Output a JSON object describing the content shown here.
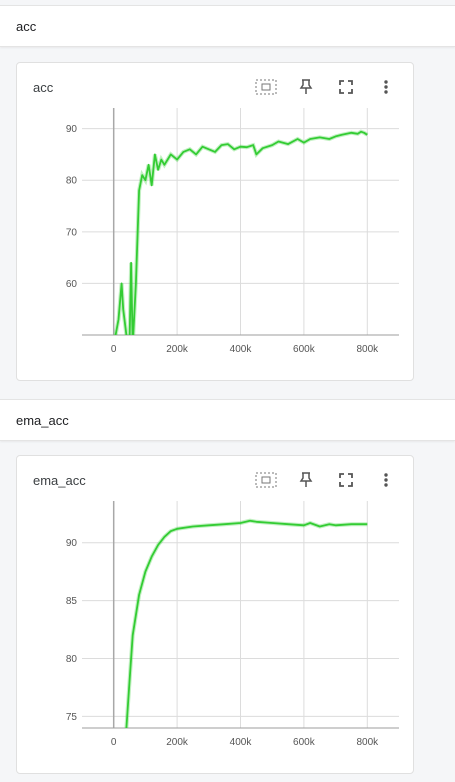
{
  "sections": [
    {
      "title": "acc"
    },
    {
      "title": "ema_acc"
    }
  ],
  "cards": [
    {
      "title": "acc",
      "tools": [
        "fit-domain-icon",
        "pin-icon",
        "fullscreen-icon",
        "more-vert-icon"
      ]
    },
    {
      "title": "ema_acc",
      "tools": [
        "fit-domain-icon",
        "pin-icon",
        "fullscreen-icon",
        "more-vert-icon"
      ]
    }
  ],
  "chart_data": [
    {
      "type": "line",
      "title": "acc",
      "xlabel": "",
      "ylabel": "",
      "xlim": [
        -100000,
        900000
      ],
      "ylim": [
        50,
        94
      ],
      "x_ticks": [
        0,
        200000,
        400000,
        600000,
        800000
      ],
      "x_tick_labels": [
        "0",
        "200k",
        "400k",
        "600k",
        "800k"
      ],
      "y_ticks": [
        60,
        70,
        80,
        90
      ],
      "y_tick_labels": [
        "60",
        "70",
        "80",
        "90"
      ],
      "grid": true,
      "color": "#33cc33",
      "series": [
        {
          "x": [
            0,
            15000,
            25000,
            30000,
            40000,
            50000,
            55000,
            60000,
            70000,
            80000,
            90000,
            100000,
            110000,
            120000,
            130000,
            140000,
            150000,
            160000,
            170000,
            180000,
            200000,
            220000,
            240000,
            260000,
            280000,
            300000,
            320000,
            340000,
            360000,
            380000,
            400000,
            420000,
            440000,
            450000,
            470000,
            500000,
            520000,
            550000,
            580000,
            600000,
            620000,
            650000,
            680000,
            700000,
            720000,
            750000,
            770000,
            780000,
            790000,
            800000
          ],
          "y": [
            48,
            53,
            60,
            55,
            50,
            48,
            64,
            48,
            60,
            78,
            81,
            80,
            83,
            79,
            85,
            82,
            84,
            83,
            84,
            85,
            84,
            85.5,
            86,
            85,
            86.5,
            86,
            85.5,
            86.8,
            87,
            86,
            86.5,
            86.4,
            86.8,
            85,
            86.2,
            86.8,
            87.5,
            87,
            88,
            87.3,
            88,
            88.3,
            88,
            88.5,
            88.8,
            89.2,
            89,
            89.4,
            89.2,
            88.8
          ]
        }
      ]
    },
    {
      "type": "line",
      "title": "ema_acc",
      "xlabel": "",
      "ylabel": "",
      "xlim": [
        -100000,
        900000
      ],
      "ylim": [
        74,
        93.6
      ],
      "x_ticks": [
        0,
        200000,
        400000,
        600000,
        800000
      ],
      "x_tick_labels": [
        "0",
        "200k",
        "400k",
        "600k",
        "800k"
      ],
      "y_ticks": [
        75,
        80,
        85,
        90
      ],
      "y_tick_labels": [
        "75",
        "80",
        "85",
        "90"
      ],
      "grid": true,
      "color": "#33cc33",
      "series": [
        {
          "x": [
            40000,
            50000,
            60000,
            80000,
            100000,
            120000,
            140000,
            160000,
            180000,
            200000,
            250000,
            300000,
            350000,
            400000,
            430000,
            450000,
            500000,
            550000,
            600000,
            620000,
            650000,
            680000,
            700000,
            750000,
            800000
          ],
          "y": [
            74,
            78,
            82,
            85.5,
            87.5,
            88.8,
            89.8,
            90.5,
            91,
            91.2,
            91.4,
            91.5,
            91.6,
            91.7,
            91.9,
            91.8,
            91.7,
            91.6,
            91.5,
            91.7,
            91.4,
            91.6,
            91.5,
            91.6,
            91.6
          ]
        }
      ]
    }
  ]
}
